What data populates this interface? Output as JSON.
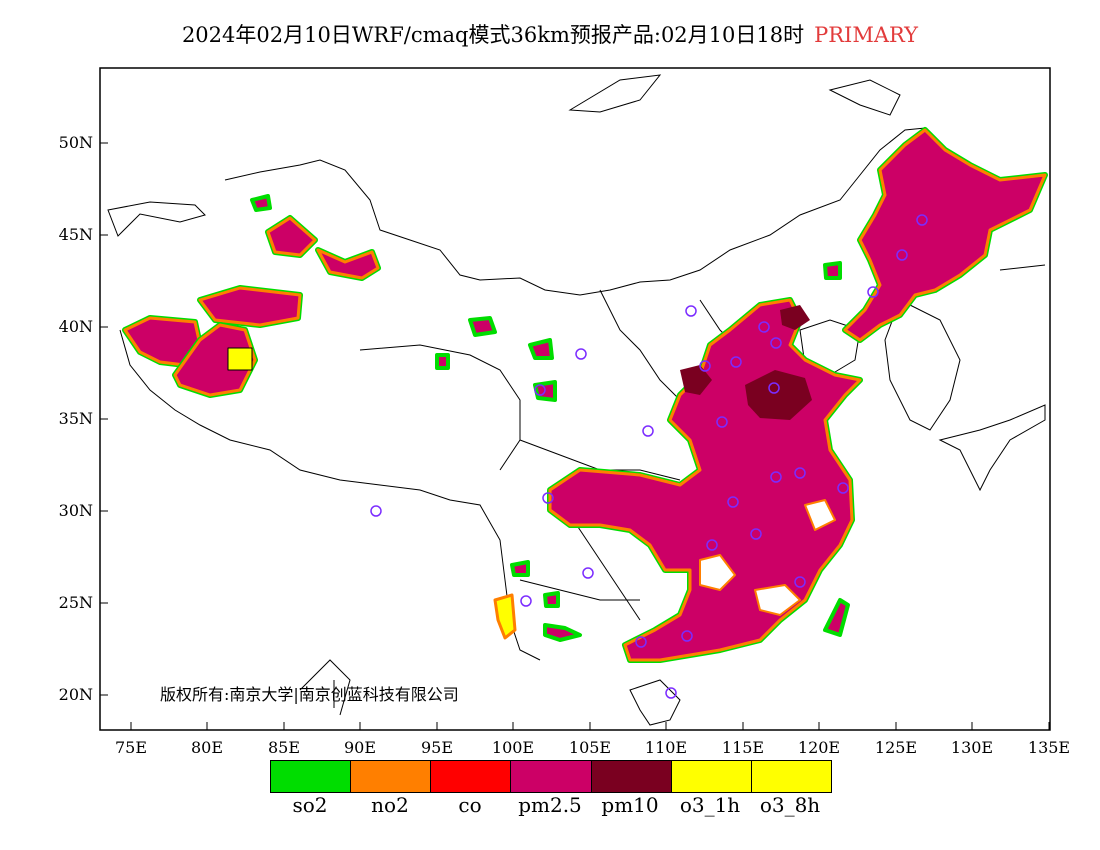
{
  "title": {
    "main": "2024年02月10日WRF/cmaq模式36km预报产品:02月10日18时",
    "tag": "PRIMARY"
  },
  "y_axis_labels": [
    "50N",
    "45N",
    "40N",
    "35N",
    "30N",
    "25N",
    "20N"
  ],
  "x_axis_labels": [
    "75E",
    "80E",
    "85E",
    "90E",
    "95E",
    "100E",
    "105E",
    "110E",
    "115E",
    "120E",
    "125E",
    "130E",
    "135E"
  ],
  "copyright": "版权所有:南京大学|南京创蓝科技有限公司",
  "legend": [
    {
      "label": "so2",
      "color": "#00dd00"
    },
    {
      "label": "no2",
      "color": "#ff7f00"
    },
    {
      "label": "co",
      "color": "#ff0000"
    },
    {
      "label": "pm2.5",
      "color": "#cc0066"
    },
    {
      "label": "pm10",
      "color": "#7a0020"
    },
    {
      "label": "o3_1h",
      "color": "#ffff00"
    },
    {
      "label": "o3_8h",
      "color": "#ffff00"
    }
  ]
}
